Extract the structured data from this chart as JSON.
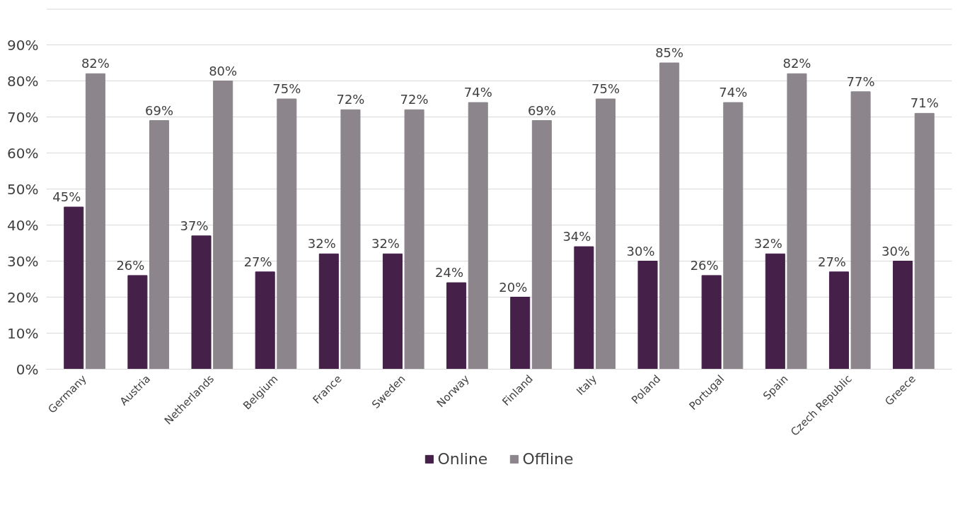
{
  "chart_data": {
    "type": "bar",
    "categories": [
      "Germany",
      "Austria",
      "Netherlands",
      "Belgium",
      "France",
      "Sweden",
      "Norway",
      "Finland",
      "Italy",
      "Poland",
      "Portugal",
      "Spain",
      "Czech Republic",
      "Greece"
    ],
    "series": [
      {
        "name": "Online",
        "color": "#45214a",
        "values": [
          45,
          26,
          37,
          27,
          32,
          32,
          24,
          20,
          34,
          30,
          26,
          32,
          27,
          30
        ],
        "value_labels": [
          "45%",
          "26%",
          "37%",
          "27%",
          "32%",
          "32%",
          "24%",
          "20%",
          "34%",
          "30%",
          "26%",
          "32%",
          "27%",
          "30%"
        ]
      },
      {
        "name": "Offline",
        "color": "#8c868c",
        "values": [
          82,
          69,
          80,
          75,
          72,
          72,
          74,
          69,
          75,
          85,
          74,
          82,
          77,
          71
        ],
        "value_labels": [
          "82%",
          "69%",
          "80%",
          "75%",
          "72%",
          "72%",
          "74%",
          "69%",
          "75%",
          "85%",
          "74%",
          "82%",
          "77%",
          "71%"
        ]
      }
    ],
    "ylim": [
      0,
      100
    ],
    "yticks": [
      {
        "value": 0,
        "label": "0%"
      },
      {
        "value": 10,
        "label": "10%"
      },
      {
        "value": 20,
        "label": "20%"
      },
      {
        "value": 30,
        "label": "30%"
      },
      {
        "value": 40,
        "label": "40%"
      },
      {
        "value": 50,
        "label": "50%"
      },
      {
        "value": 60,
        "label": "60%"
      },
      {
        "value": 70,
        "label": "70%"
      },
      {
        "value": 80,
        "label": "80%"
      },
      {
        "value": 90,
        "label": "90%"
      },
      {
        "value": 100,
        "label": null
      }
    ],
    "grid": "y",
    "legend": "bottom"
  }
}
